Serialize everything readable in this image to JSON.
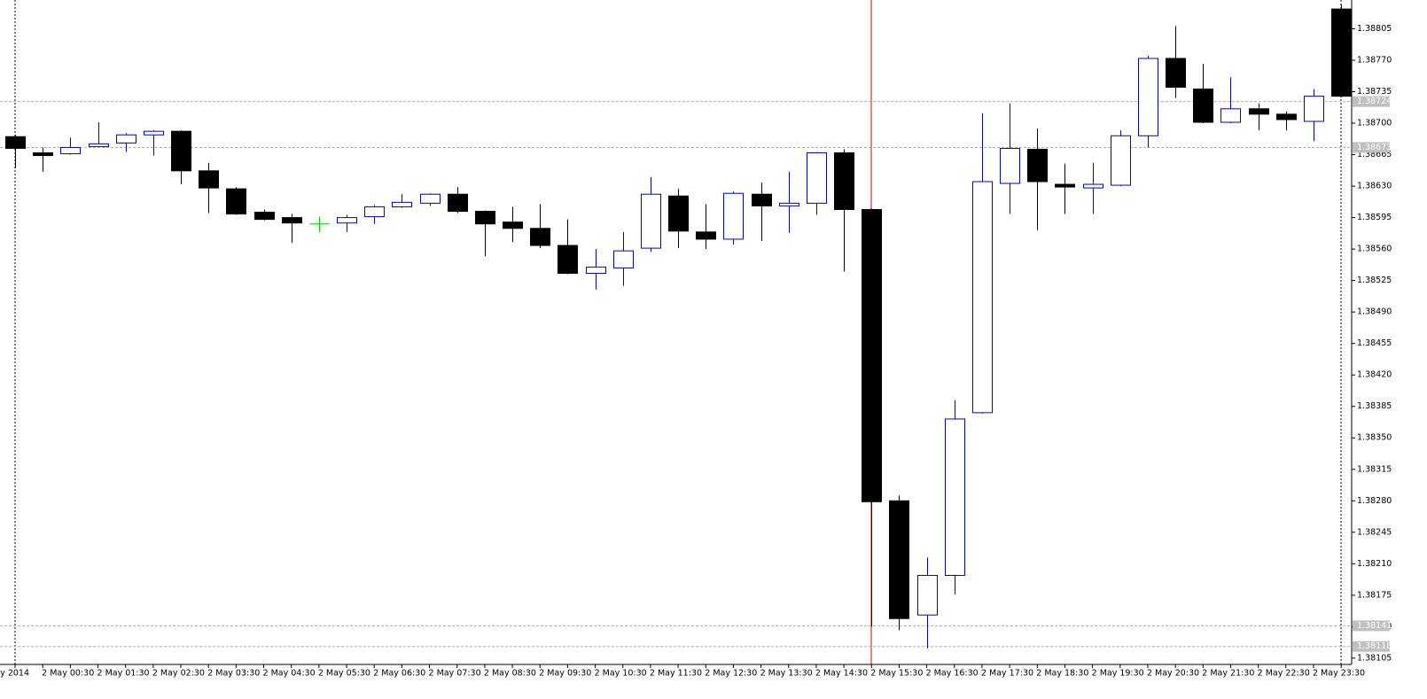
{
  "chart_data": {
    "type": "candlestick",
    "categories": [
      "2 May 2014",
      "2 May 00:30",
      null,
      "2 May 01:30",
      null,
      "2 May 02:30",
      null,
      "2 May 03:30",
      null,
      "2 May 04:30",
      null,
      "2 May 05:30",
      null,
      "2 May 06:30",
      null,
      "2 May 07:30",
      null,
      "2 May 08:30",
      null,
      "2 May 09:30",
      null,
      "2 May 10:30",
      null,
      "2 May 11:30",
      null,
      "2 May 12:30",
      null,
      "2 May 13:30",
      null,
      "2 May 14:30",
      null,
      "2 May 15:30",
      null,
      "2 May 16:30",
      null,
      "2 May 17:30",
      null,
      "2 May 18:30",
      null,
      "2 May 19:30",
      null,
      "2 May 20:30",
      null,
      "2 May 21:30",
      null,
      "2 May 22:30",
      null,
      "2 May 23:30",
      null
    ],
    "open": [
      1.38685,
      1.38667,
      1.38666,
      1.38674,
      1.38678,
      1.38687,
      1.38691,
      1.38647,
      1.38627,
      1.38601,
      1.38595,
      1.38588,
      1.38589,
      1.38596,
      1.38607,
      1.38611,
      1.38621,
      1.38602,
      1.3859,
      1.38583,
      1.38564,
      1.38533,
      1.38539,
      1.38561,
      1.38619,
      1.38579,
      1.38571,
      1.38621,
      1.38608,
      1.38611,
      1.38667,
      1.38604,
      1.3828,
      1.38153,
      1.38197,
      1.38378,
      1.38633,
      1.38671,
      1.38632,
      1.38628,
      1.38631,
      1.38686,
      1.38772,
      1.38738,
      1.38701,
      1.38716,
      1.3871,
      1.38702,
      1.38827
    ],
    "high": [
      1.38687,
      1.38673,
      1.38684,
      1.38701,
      1.38689,
      1.38692,
      1.38692,
      1.38656,
      1.38629,
      1.38604,
      1.38599,
      1.38596,
      1.38598,
      1.38609,
      1.38621,
      1.38622,
      1.38629,
      1.38603,
      1.38607,
      1.3861,
      1.38593,
      1.3856,
      1.38579,
      1.3864,
      1.38627,
      1.3861,
      1.38624,
      1.38634,
      1.38646,
      1.38668,
      1.38671,
      1.38605,
      1.38286,
      1.38217,
      1.38392,
      1.38711,
      1.38722,
      1.38694,
      1.38655,
      1.38656,
      1.38692,
      1.38775,
      1.38808,
      1.38766,
      1.38751,
      1.38722,
      1.38713,
      1.38738,
      1.38832
    ],
    "low": [
      1.3865,
      1.38646,
      1.38665,
      1.38674,
      1.38668,
      1.38664,
      1.38632,
      1.386,
      1.38598,
      1.38592,
      1.38567,
      1.38579,
      1.38579,
      1.38588,
      1.38606,
      1.38608,
      1.386,
      1.38552,
      1.38568,
      1.38561,
      1.38532,
      1.38515,
      1.38519,
      1.38557,
      1.38561,
      1.3856,
      1.38565,
      1.38569,
      1.38578,
      1.38598,
      1.38535,
      1.3814,
      1.38136,
      1.38116,
      1.38176,
      1.38377,
      1.38599,
      1.38581,
      1.38599,
      1.38599,
      1.3863,
      1.38673,
      1.38728,
      1.387,
      1.387,
      1.38692,
      1.38692,
      1.3868,
      1.38729
    ],
    "close": [
      1.38672,
      1.38664,
      1.38673,
      1.38677,
      1.38687,
      1.38691,
      1.38647,
      1.38628,
      1.38599,
      1.38593,
      1.38589,
      1.38588,
      1.38595,
      1.38607,
      1.38612,
      1.38621,
      1.38602,
      1.38588,
      1.38583,
      1.38564,
      1.38533,
      1.3854,
      1.38558,
      1.38621,
      1.3858,
      1.38571,
      1.38622,
      1.38608,
      1.38611,
      1.38667,
      1.38604,
      1.38279,
      1.38149,
      1.38197,
      1.38371,
      1.38635,
      1.38672,
      1.38635,
      1.38629,
      1.38632,
      1.38686,
      1.38772,
      1.3874,
      1.38701,
      1.38716,
      1.3871,
      1.38704,
      1.3873,
      1.3873
    ],
    "up_color": "#0000cc",
    "down_color": "#000000",
    "doji_color": "#00cc00",
    "ylim": [
      1.38098,
      1.38837
    ],
    "yticks": [
      1.38105,
      {
        "value": 1.3814,
        "label": "1.38140"
      },
      1.38175,
      {
        "value": 1.3821,
        "label": "1.38210"
      },
      1.38245,
      {
        "value": 1.3828,
        "label": "1.38280"
      },
      1.38315,
      {
        "value": 1.3835,
        "label": "1.38350"
      },
      1.38385,
      {
        "value": 1.3842,
        "label": "1.38420"
      },
      1.38455,
      {
        "value": 1.3849,
        "label": "1.38490"
      },
      1.38525,
      {
        "value": 1.3856,
        "label": "1.38560"
      },
      1.38595,
      {
        "value": 1.3863,
        "label": "1.38630"
      },
      1.38665,
      {
        "value": 1.387,
        "label": "1.38700"
      },
      1.38735,
      {
        "value": 1.3877,
        "label": "1.38770"
      },
      1.38805
    ],
    "levels": [
      1.38724,
      1.38673,
      1.38141,
      1.38118
    ]
  }
}
